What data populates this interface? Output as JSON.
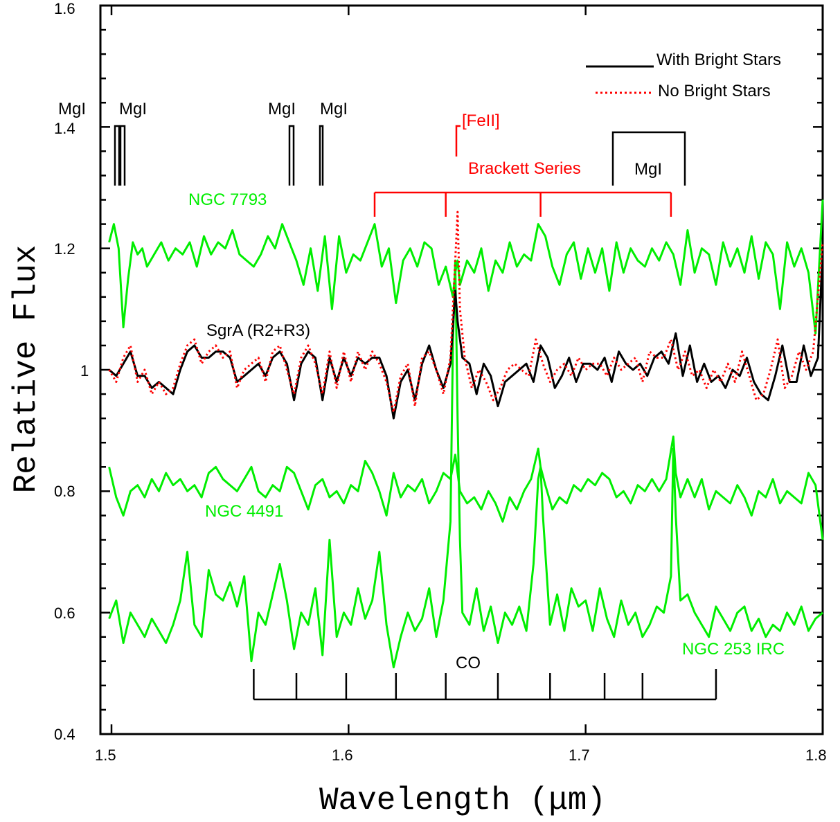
{
  "chart_data": {
    "type": "line",
    "xlabel": "Wavelength (μm)",
    "ylabel": "Relative Flux",
    "xlim": [
      1.5,
      1.8
    ],
    "ylim": [
      0.4,
      1.6
    ],
    "xticks": [
      "1.5",
      "1.6",
      "1.7",
      "1.8"
    ],
    "yticks": [
      "0.4",
      "0.6",
      "0.8",
      "1",
      "1.2",
      "1.4",
      "1.6"
    ],
    "grid": false,
    "legend": {
      "placement": "top-right",
      "entries": [
        {
          "label": "With Bright Stars",
          "style": "solid",
          "color": "#000000"
        },
        {
          "label": "No Bright Stars",
          "style": "dotted",
          "color": "#ff0000"
        }
      ]
    },
    "series": [
      {
        "label": "NGC 7793",
        "color": "#00ee00",
        "x": [
          1.499,
          1.501,
          1.503,
          1.505,
          1.507,
          1.509,
          1.511,
          1.513,
          1.515,
          1.518,
          1.521,
          1.524,
          1.527,
          1.53,
          1.533,
          1.536,
          1.539,
          1.542,
          1.545,
          1.548,
          1.551,
          1.554,
          1.557,
          1.56,
          1.563,
          1.566,
          1.569,
          1.572,
          1.575,
          1.578,
          1.581,
          1.584,
          1.587,
          1.59,
          1.593,
          1.596,
          1.599,
          1.602,
          1.605,
          1.608,
          1.611,
          1.614,
          1.617,
          1.62,
          1.623,
          1.626,
          1.629,
          1.632,
          1.635,
          1.638,
          1.641,
          1.644,
          1.645,
          1.646,
          1.647,
          1.65,
          1.653,
          1.656,
          1.659,
          1.662,
          1.665,
          1.668,
          1.671,
          1.674,
          1.677,
          1.68,
          1.683,
          1.686,
          1.689,
          1.692,
          1.695,
          1.698,
          1.701,
          1.704,
          1.707,
          1.71,
          1.713,
          1.716,
          1.719,
          1.722,
          1.725,
          1.728,
          1.731,
          1.734,
          1.737,
          1.74,
          1.743,
          1.746,
          1.749,
          1.752,
          1.755,
          1.758,
          1.761,
          1.764,
          1.767,
          1.77,
          1.773,
          1.776,
          1.779,
          1.782,
          1.785,
          1.788,
          1.791,
          1.794,
          1.797,
          1.8
        ],
        "y": [
          1.21,
          1.24,
          1.2,
          1.07,
          1.15,
          1.21,
          1.19,
          1.2,
          1.17,
          1.19,
          1.21,
          1.18,
          1.2,
          1.19,
          1.21,
          1.17,
          1.22,
          1.19,
          1.21,
          1.2,
          1.23,
          1.19,
          1.18,
          1.17,
          1.19,
          1.22,
          1.2,
          1.24,
          1.21,
          1.18,
          1.14,
          1.2,
          1.13,
          1.22,
          1.1,
          1.22,
          1.16,
          1.19,
          1.18,
          1.21,
          1.24,
          1.17,
          1.2,
          1.11,
          1.18,
          1.2,
          1.17,
          1.21,
          1.2,
          1.14,
          1.17,
          1.12,
          1.16,
          1.18,
          1.14,
          1.18,
          1.16,
          1.2,
          1.13,
          1.18,
          1.16,
          1.21,
          1.17,
          1.19,
          1.18,
          1.24,
          1.22,
          1.17,
          1.14,
          1.19,
          1.21,
          1.15,
          1.2,
          1.16,
          1.2,
          1.13,
          1.21,
          1.16,
          1.2,
          1.18,
          1.17,
          1.2,
          1.18,
          1.21,
          1.19,
          1.14,
          1.23,
          1.16,
          1.2,
          1.19,
          1.14,
          1.21,
          1.17,
          1.2,
          1.16,
          1.22,
          1.15,
          1.21,
          1.19,
          1.1,
          1.21,
          1.17,
          1.2,
          1.16,
          1.06,
          1.28
        ]
      },
      {
        "label": "SgrA (R2+R3)",
        "color": "#000000",
        "x": [
          1.499,
          1.502,
          1.505,
          1.508,
          1.511,
          1.514,
          1.517,
          1.52,
          1.523,
          1.526,
          1.529,
          1.532,
          1.535,
          1.538,
          1.541,
          1.544,
          1.547,
          1.55,
          1.553,
          1.556,
          1.559,
          1.562,
          1.565,
          1.568,
          1.571,
          1.574,
          1.577,
          1.58,
          1.583,
          1.586,
          1.589,
          1.592,
          1.595,
          1.598,
          1.601,
          1.604,
          1.607,
          1.61,
          1.613,
          1.616,
          1.619,
          1.622,
          1.625,
          1.628,
          1.631,
          1.634,
          1.637,
          1.64,
          1.643,
          1.645,
          1.646,
          1.648,
          1.651,
          1.654,
          1.657,
          1.66,
          1.663,
          1.666,
          1.669,
          1.672,
          1.675,
          1.678,
          1.681,
          1.684,
          1.687,
          1.69,
          1.693,
          1.696,
          1.699,
          1.702,
          1.705,
          1.708,
          1.711,
          1.714,
          1.717,
          1.72,
          1.723,
          1.726,
          1.729,
          1.732,
          1.735,
          1.738,
          1.741,
          1.744,
          1.747,
          1.75,
          1.753,
          1.756,
          1.759,
          1.762,
          1.765,
          1.768,
          1.771,
          1.774,
          1.777,
          1.78,
          1.783,
          1.786,
          1.789,
          1.792,
          1.795,
          1.798,
          1.8
        ],
        "y": [
          1.0,
          0.99,
          1.01,
          1.03,
          0.99,
          0.99,
          0.97,
          0.98,
          0.97,
          0.96,
          1.0,
          1.03,
          1.04,
          1.02,
          1.02,
          1.03,
          1.03,
          1.02,
          0.98,
          0.99,
          1.0,
          1.01,
          0.99,
          1.02,
          1.03,
          1.01,
          0.95,
          1.01,
          1.03,
          1.02,
          0.95,
          1.02,
          0.98,
          1.02,
          0.99,
          1.02,
          1.01,
          1.02,
          1.02,
          0.99,
          0.92,
          0.98,
          1.0,
          0.95,
          1.01,
          1.04,
          1.0,
          0.97,
          1.01,
          1.13,
          1.08,
          1.02,
          1.01,
          0.96,
          1.01,
          0.99,
          0.94,
          0.98,
          0.99,
          1.0,
          1.01,
          0.98,
          1.04,
          1.02,
          0.97,
          0.99,
          1.02,
          0.98,
          1.01,
          1.01,
          1.0,
          1.02,
          0.98,
          1.03,
          1.01,
          1.0,
          1.01,
          0.99,
          1.02,
          1.03,
          1.01,
          1.06,
          0.99,
          1.04,
          0.98,
          1.01,
          0.98,
          0.99,
          0.97,
          1.0,
          0.99,
          1.02,
          0.98,
          0.96,
          0.95,
          0.99,
          1.04,
          0.98,
          0.98,
          1.04,
          0.99,
          1.02,
          1.2
        ]
      },
      {
        "label": "SgrA (R2+R3) no bright stars",
        "color": "#ff0000",
        "style": "dotted",
        "x": [
          1.499,
          1.502,
          1.505,
          1.508,
          1.511,
          1.514,
          1.517,
          1.52,
          1.523,
          1.526,
          1.529,
          1.532,
          1.535,
          1.538,
          1.541,
          1.544,
          1.547,
          1.55,
          1.553,
          1.556,
          1.559,
          1.562,
          1.565,
          1.568,
          1.571,
          1.574,
          1.577,
          1.58,
          1.583,
          1.586,
          1.589,
          1.592,
          1.595,
          1.598,
          1.601,
          1.604,
          1.607,
          1.61,
          1.613,
          1.616,
          1.619,
          1.622,
          1.625,
          1.628,
          1.631,
          1.634,
          1.637,
          1.64,
          1.643,
          1.645,
          1.646,
          1.647,
          1.649,
          1.652,
          1.655,
          1.658,
          1.661,
          1.664,
          1.667,
          1.67,
          1.673,
          1.676,
          1.679,
          1.682,
          1.685,
          1.688,
          1.691,
          1.694,
          1.697,
          1.7,
          1.703,
          1.706,
          1.709,
          1.712,
          1.715,
          1.718,
          1.721,
          1.724,
          1.727,
          1.73,
          1.733,
          1.736,
          1.739,
          1.742,
          1.745,
          1.748,
          1.751,
          1.754,
          1.757,
          1.76,
          1.763,
          1.766,
          1.769,
          1.772,
          1.775,
          1.778,
          1.781,
          1.784,
          1.787,
          1.79,
          1.793,
          1.796,
          1.8
        ],
        "y": [
          1.0,
          0.98,
          1.02,
          1.04,
          0.98,
          1.0,
          0.96,
          0.98,
          0.96,
          0.97,
          1.01,
          1.04,
          1.05,
          1.01,
          1.03,
          1.04,
          1.02,
          1.03,
          0.97,
          1.0,
          1.01,
          1.02,
          0.98,
          1.03,
          1.04,
          1.0,
          0.96,
          1.02,
          1.04,
          1.01,
          0.96,
          1.03,
          0.97,
          1.03,
          0.98,
          1.03,
          1.0,
          1.03,
          1.01,
          0.98,
          0.93,
          0.99,
          1.01,
          0.94,
          1.02,
          1.03,
          1.0,
          0.96,
          1.02,
          1.18,
          1.26,
          1.1,
          1.02,
          0.97,
          1.0,
          0.98,
          0.95,
          0.97,
          1.0,
          1.01,
          1.0,
          0.99,
          1.05,
          1.01,
          0.98,
          1.0,
          1.01,
          0.99,
          1.02,
          1.0,
          1.01,
          1.01,
          0.99,
          1.02,
          1.0,
          1.01,
          1.02,
          0.98,
          1.03,
          1.02,
          1.02,
          1.05,
          1.0,
          1.03,
          0.99,
          1.0,
          0.97,
          1.0,
          0.98,
          1.01,
          0.98,
          1.03,
          0.99,
          0.95,
          0.96,
          1.0,
          1.05,
          0.97,
          0.99,
          1.03,
          1.0,
          1.03,
          1.21
        ]
      },
      {
        "label": "NGC 4491",
        "color": "#00ee00",
        "x": [
          1.499,
          1.502,
          1.505,
          1.508,
          1.511,
          1.514,
          1.517,
          1.52,
          1.523,
          1.526,
          1.529,
          1.532,
          1.535,
          1.538,
          1.541,
          1.544,
          1.547,
          1.55,
          1.553,
          1.556,
          1.559,
          1.562,
          1.565,
          1.568,
          1.571,
          1.574,
          1.577,
          1.58,
          1.583,
          1.586,
          1.589,
          1.592,
          1.595,
          1.598,
          1.601,
          1.604,
          1.607,
          1.61,
          1.613,
          1.616,
          1.619,
          1.622,
          1.625,
          1.628,
          1.631,
          1.634,
          1.637,
          1.64,
          1.643,
          1.645,
          1.647,
          1.65,
          1.653,
          1.656,
          1.659,
          1.662,
          1.665,
          1.668,
          1.671,
          1.674,
          1.677,
          1.68,
          1.681,
          1.683,
          1.686,
          1.689,
          1.692,
          1.695,
          1.698,
          1.701,
          1.704,
          1.707,
          1.71,
          1.713,
          1.716,
          1.719,
          1.722,
          1.725,
          1.728,
          1.731,
          1.734,
          1.737,
          1.738,
          1.74,
          1.743,
          1.746,
          1.749,
          1.752,
          1.755,
          1.758,
          1.761,
          1.764,
          1.767,
          1.77,
          1.773,
          1.776,
          1.779,
          1.782,
          1.785,
          1.788,
          1.791,
          1.794,
          1.797,
          1.8
        ],
        "y": [
          0.84,
          0.79,
          0.76,
          0.8,
          0.81,
          0.79,
          0.82,
          0.8,
          0.83,
          0.81,
          0.82,
          0.8,
          0.81,
          0.79,
          0.83,
          0.84,
          0.82,
          0.81,
          0.8,
          0.82,
          0.84,
          0.8,
          0.79,
          0.81,
          0.8,
          0.84,
          0.83,
          0.8,
          0.77,
          0.81,
          0.82,
          0.79,
          0.8,
          0.78,
          0.81,
          0.8,
          0.85,
          0.83,
          0.8,
          0.76,
          0.83,
          0.79,
          0.81,
          0.8,
          0.82,
          0.78,
          0.8,
          0.83,
          0.82,
          0.86,
          0.8,
          0.78,
          0.79,
          0.77,
          0.8,
          0.78,
          0.75,
          0.79,
          0.77,
          0.8,
          0.82,
          0.87,
          0.84,
          0.81,
          0.77,
          0.79,
          0.78,
          0.81,
          0.8,
          0.82,
          0.81,
          0.83,
          0.82,
          0.79,
          0.8,
          0.78,
          0.81,
          0.8,
          0.82,
          0.8,
          0.82,
          0.89,
          0.83,
          0.79,
          0.82,
          0.79,
          0.82,
          0.77,
          0.8,
          0.79,
          0.78,
          0.81,
          0.79,
          0.76,
          0.8,
          0.79,
          0.82,
          0.78,
          0.8,
          0.79,
          0.78,
          0.83,
          0.81,
          0.72
        ]
      },
      {
        "label": "NGC 253 IRC",
        "color": "#00ee00",
        "x": [
          1.499,
          1.502,
          1.505,
          1.508,
          1.511,
          1.514,
          1.517,
          1.52,
          1.523,
          1.526,
          1.529,
          1.532,
          1.535,
          1.538,
          1.541,
          1.544,
          1.547,
          1.55,
          1.553,
          1.556,
          1.559,
          1.562,
          1.565,
          1.568,
          1.571,
          1.574,
          1.577,
          1.58,
          1.583,
          1.586,
          1.589,
          1.592,
          1.595,
          1.598,
          1.601,
          1.604,
          1.607,
          1.61,
          1.613,
          1.616,
          1.619,
          1.622,
          1.625,
          1.628,
          1.631,
          1.634,
          1.637,
          1.64,
          1.643,
          1.644,
          1.645,
          1.646,
          1.647,
          1.648,
          1.651,
          1.654,
          1.657,
          1.66,
          1.663,
          1.666,
          1.669,
          1.672,
          1.675,
          1.678,
          1.68,
          1.681,
          1.682,
          1.685,
          1.688,
          1.691,
          1.694,
          1.697,
          1.7,
          1.703,
          1.706,
          1.709,
          1.712,
          1.715,
          1.718,
          1.721,
          1.724,
          1.727,
          1.73,
          1.733,
          1.736,
          1.737,
          1.738,
          1.74,
          1.743,
          1.746,
          1.749,
          1.752,
          1.755,
          1.758,
          1.761,
          1.764,
          1.767,
          1.77,
          1.773,
          1.776,
          1.779,
          1.782,
          1.785,
          1.788,
          1.791,
          1.794,
          1.797,
          1.8
        ],
        "y": [
          0.59,
          0.62,
          0.55,
          0.6,
          0.58,
          0.56,
          0.59,
          0.57,
          0.55,
          0.58,
          0.62,
          0.7,
          0.58,
          0.56,
          0.67,
          0.63,
          0.62,
          0.65,
          0.61,
          0.66,
          0.52,
          0.6,
          0.58,
          0.63,
          0.68,
          0.62,
          0.54,
          0.6,
          0.58,
          0.64,
          0.53,
          0.72,
          0.56,
          0.6,
          0.58,
          0.64,
          0.59,
          0.62,
          0.7,
          0.58,
          0.51,
          0.56,
          0.6,
          0.57,
          0.59,
          0.64,
          0.56,
          0.62,
          0.75,
          1.04,
          1.18,
          0.92,
          0.72,
          0.6,
          0.58,
          0.64,
          0.57,
          0.61,
          0.55,
          0.6,
          0.58,
          0.61,
          0.57,
          0.68,
          0.82,
          0.84,
          0.76,
          0.58,
          0.63,
          0.57,
          0.64,
          0.61,
          0.62,
          0.57,
          0.64,
          0.59,
          0.56,
          0.62,
          0.58,
          0.6,
          0.56,
          0.58,
          0.61,
          0.6,
          0.66,
          0.87,
          0.76,
          0.62,
          0.63,
          0.6,
          0.58,
          0.56,
          0.61,
          0.59,
          0.57,
          0.6,
          0.61,
          0.57,
          0.59,
          0.56,
          0.58,
          0.57,
          0.6,
          0.58,
          0.61,
          0.57,
          0.59,
          0.6
        ]
      }
    ],
    "annotations": {
      "mgi_labels": [
        "MgI",
        "MgI",
        "MgI",
        "MgI",
        "MgI"
      ],
      "feii_label": "[FeII]",
      "brackett_label": "Brackett Series",
      "co_label": "CO",
      "ngc7793_label": "NGC 7793",
      "sgra_label": "SgrA (R2+R3)",
      "ngc4491_label": "NGC 4491",
      "ngc253_label": "NGC 253 IRC",
      "brackett_x": [
        1.611,
        1.641,
        1.681,
        1.736
      ],
      "co_x": [
        1.56,
        1.578,
        1.599,
        1.62,
        1.641,
        1.663,
        1.685,
        1.708,
        1.724,
        1.755
      ]
    },
    "colors": {
      "green": "#00ee00",
      "red": "#ff0000",
      "black": "#000000"
    }
  }
}
